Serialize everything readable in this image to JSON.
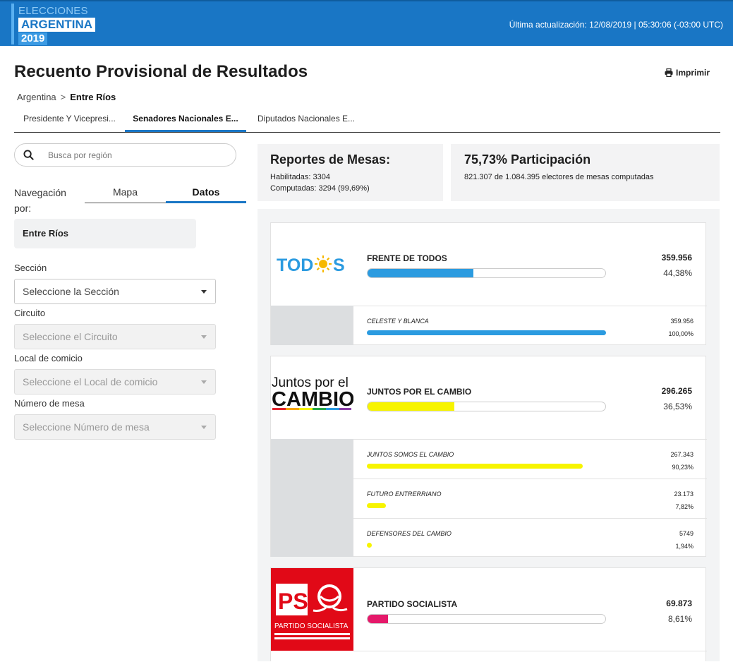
{
  "header": {
    "logo_line1": "ELECCIONES",
    "logo_line2": "ARGENTINA",
    "logo_line3": "2019",
    "last_update": "Última actualización: 12/08/2019 | 05:30:06 (-03:00 UTC)"
  },
  "page": {
    "title": "Recuento Provisional de Resultados",
    "print_label": "Imprimir"
  },
  "breadcrumb": {
    "root": "Argentina",
    "separator": ">",
    "current": "Entre Ríos"
  },
  "tabs": [
    {
      "label": "Presidente Y Vicepresi..."
    },
    {
      "label": "Senadores Nacionales E..."
    },
    {
      "label": "Diputados Nacionales E..."
    }
  ],
  "sidebar": {
    "search_placeholder": "Busca por región",
    "nav_label": "Navegación por:",
    "nav_map": "Mapa",
    "nav_data": "Datos",
    "region": "Entre Ríos",
    "fields": [
      {
        "label": "Sección",
        "value": "Seleccione la Sección"
      },
      {
        "label": "Circuito",
        "value": "Seleccione el Circuito"
      },
      {
        "label": "Local de comicio",
        "value": "Seleccione el Local de comicio"
      },
      {
        "label": "Número de mesa",
        "value": "Seleccione Número de mesa"
      }
    ]
  },
  "stats": {
    "mesas_title": "Reportes de Mesas:",
    "habilitadas": "Habilitadas: 3304",
    "computadas": "Computadas: 3294 (99,69%)",
    "participation_title": "75,73% Participación",
    "participation_detail": "821.307 de 1.084.395 electores de mesas computadas"
  },
  "colors": {
    "accent": "#1976c5",
    "fdt": "#2b9be0",
    "jpc": "#f7f400",
    "ps": "#e5196a"
  },
  "results": [
    {
      "name": "FRENTE DE TODOS",
      "logo_text": "TODOS",
      "votes": "359.956",
      "pct": "44,38%",
      "share": 0.4438,
      "lists": [
        {
          "name": "CELESTE Y BLANCA",
          "votes": "359.956",
          "pct": "100,00%",
          "share": 1.0
        }
      ]
    },
    {
      "name": "JUNTOS POR EL CAMBIO",
      "logo_text_1": "Juntos por el",
      "logo_text_2": "CAMBIO",
      "votes": "296.265",
      "pct": "36,53%",
      "share": 0.3653,
      "lists": [
        {
          "name": "JUNTOS SOMOS EL CAMBIO",
          "votes": "267.343",
          "pct": "90,23%",
          "share": 0.9023
        },
        {
          "name": "FUTURO ENTRERRIANO",
          "votes": "23.173",
          "pct": "7,82%",
          "share": 0.0782
        },
        {
          "name": "DEFENSORES DEL CAMBIO",
          "votes": "5749",
          "pct": "1,94%",
          "share": 0.0194
        }
      ]
    },
    {
      "name": "PARTIDO SOCIALISTA",
      "logo_text_1": "PS",
      "logo_text_2": "PARTIDO SOCIALISTA",
      "votes": "69.873",
      "pct": "8,61%",
      "share": 0.0861,
      "lists": []
    }
  ]
}
